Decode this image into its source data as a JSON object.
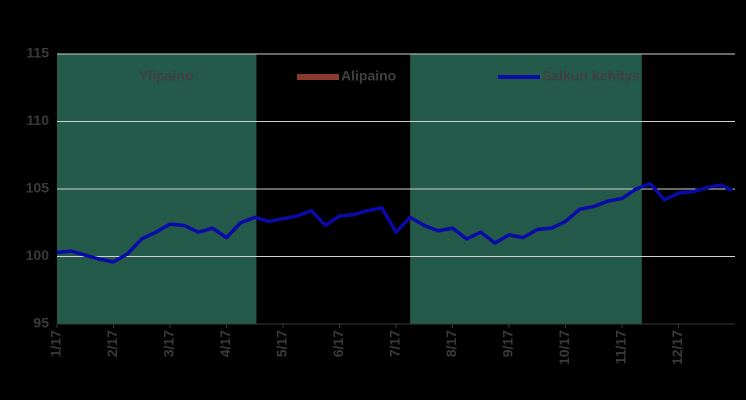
{
  "chart_data": {
    "type": "line",
    "x": [
      1.0,
      1.25,
      1.5,
      1.75,
      2.0,
      2.25,
      2.5,
      2.75,
      3.0,
      3.25,
      3.5,
      3.75,
      4.0,
      4.25,
      4.5,
      4.75,
      5.0,
      5.25,
      5.5,
      5.75,
      6.0,
      6.25,
      6.5,
      6.75,
      7.0,
      7.25,
      7.5,
      7.75,
      8.0,
      8.25,
      8.5,
      8.75,
      9.0,
      9.25,
      9.5,
      9.75,
      10.0,
      10.25,
      10.5,
      10.75,
      11.0,
      11.25,
      11.5,
      11.75,
      12.0,
      12.25,
      12.5,
      12.75,
      12.95
    ],
    "series": [
      {
        "name": "Ylipaino",
        "color": "#235a4a",
        "regions": [
          [
            1,
            4.53
          ],
          [
            7.25,
            11.35
          ]
        ]
      },
      {
        "name": "Alipaino",
        "color": "#8b3a2e",
        "regions": []
      },
      {
        "name": "Salkun kehitys",
        "color": "#0a0aa8",
        "values": [
          100.3,
          100.4,
          100.1,
          99.8,
          99.6,
          100.2,
          101.3,
          101.8,
          102.4,
          102.3,
          101.8,
          102.1,
          101.4,
          102.5,
          102.9,
          102.6,
          102.8,
          103.0,
          103.4,
          102.3,
          103.0,
          103.1,
          103.4,
          103.6,
          101.8,
          102.9,
          102.3,
          101.9,
          102.1,
          101.3,
          101.8,
          101.0,
          101.6,
          101.4,
          102.0,
          102.1,
          102.6,
          103.5,
          103.7,
          104.1,
          104.3,
          105.0,
          105.4,
          104.2,
          104.7,
          104.8,
          105.1,
          105.3,
          104.9
        ]
      }
    ],
    "xlim": [
      1,
      13
    ],
    "xticks": [
      {
        "value": 1,
        "label": "1/17"
      },
      {
        "value": 2,
        "label": "2/17"
      },
      {
        "value": 3,
        "label": "3/17"
      },
      {
        "value": 4,
        "label": "4/17"
      },
      {
        "value": 5,
        "label": "5/17"
      },
      {
        "value": 6,
        "label": "6/17"
      },
      {
        "value": 7,
        "label": "7/17"
      },
      {
        "value": 8,
        "label": "8/17"
      },
      {
        "value": 9,
        "label": "9/17"
      },
      {
        "value": 10,
        "label": "10/17"
      },
      {
        "value": 11,
        "label": "11/17"
      },
      {
        "value": 12,
        "label": "12/17"
      }
    ],
    "ylim": [
      95,
      115
    ],
    "yticks": [
      95,
      100,
      105,
      110,
      115
    ],
    "grid": true
  }
}
